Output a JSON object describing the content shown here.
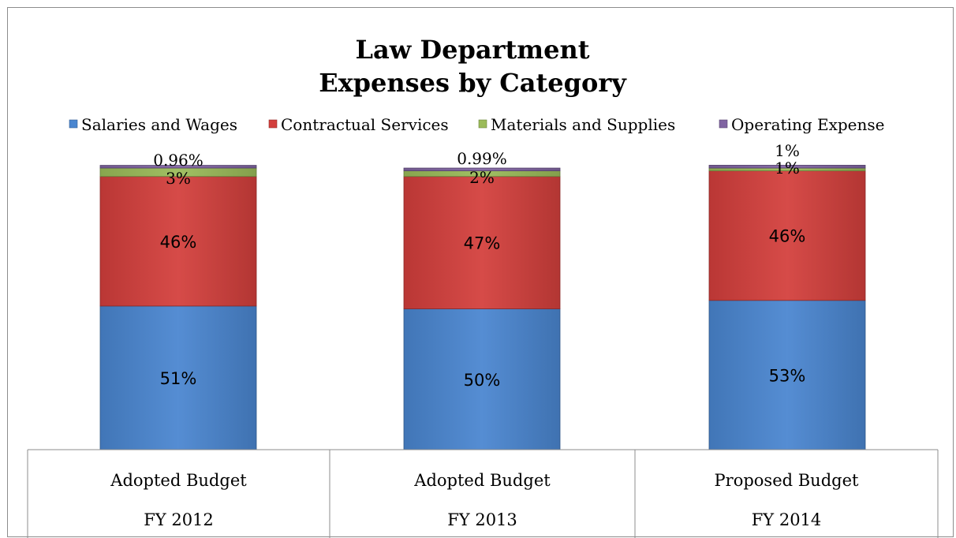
{
  "chart_data": {
    "type": "bar",
    "stacked": true,
    "title": [
      "Law Department",
      "Expenses by Category"
    ],
    "xlabel": "",
    "ylabel": "",
    "ylim": [
      0,
      100
    ],
    "grid": false,
    "legend_position": "top",
    "categories": [
      [
        "Adopted Budget",
        "FY 2012"
      ],
      [
        "Adopted Budget",
        "FY 2013"
      ],
      [
        "Proposed Budget",
        "FY 2014"
      ]
    ],
    "series": [
      {
        "name": "Salaries and Wages",
        "color": "#4a86d0",
        "values": [
          51,
          50,
          53
        ],
        "labels": [
          "51%",
          "50%",
          "53%"
        ]
      },
      {
        "name": "Contractual Services",
        "color": "#d33f3c",
        "values": [
          46,
          47,
          46
        ],
        "labels": [
          "46%",
          "47%",
          "46%"
        ]
      },
      {
        "name": "Materials and Supplies",
        "color": "#9bbb59",
        "values": [
          3,
          2,
          1
        ],
        "labels": [
          "3%",
          "2%",
          "1%"
        ]
      },
      {
        "name": "Operating Expense",
        "color": "#8064a2",
        "values": [
          0.96,
          0.99,
          1
        ],
        "labels": [
          "0.96%",
          "0.99%",
          "1%"
        ]
      }
    ]
  }
}
